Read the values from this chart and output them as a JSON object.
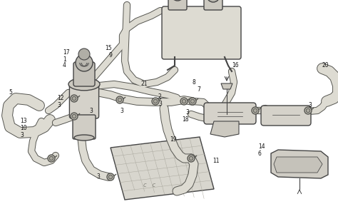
{
  "bg": "#ffffff",
  "lc": "#444444",
  "fc_light": "#e8e6e0",
  "fc_mid": "#d5d2ca",
  "fc_dark": "#bbb9b0",
  "tube_fill": "#dddbd2",
  "tube_edge": "#555550",
  "figsize": [
    4.74,
    3.0
  ],
  "dpi": 100
}
